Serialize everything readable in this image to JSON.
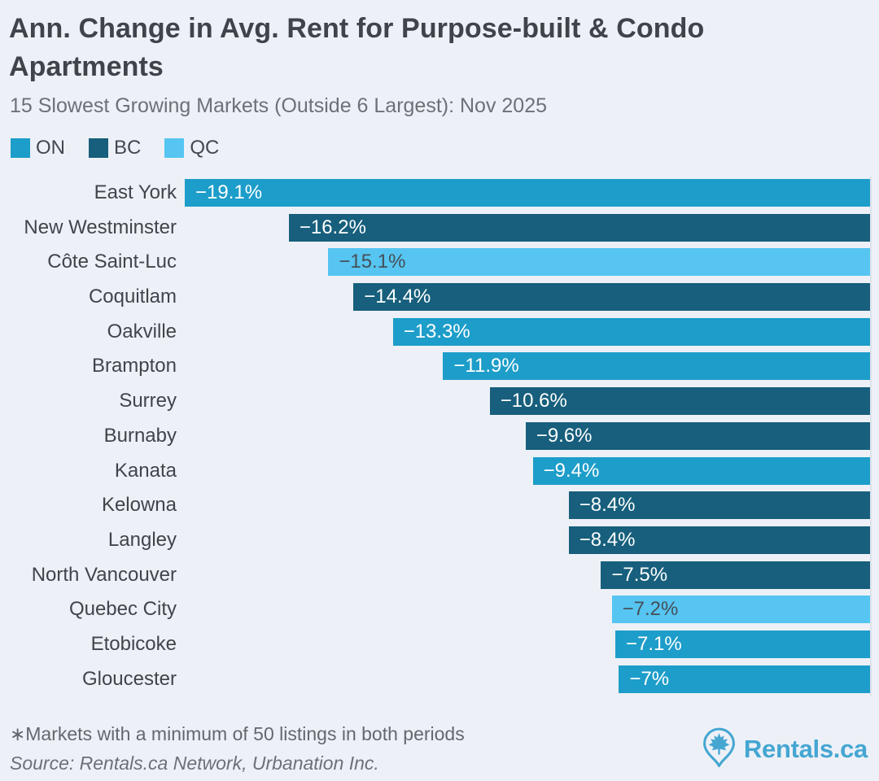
{
  "header": {
    "title": "Ann. Change in Avg. Rent for Purpose-built & Condo Apartments",
    "subtitle": "15 Slowest Growing Markets (Outside 6 Largest): Nov 2025"
  },
  "legend": {
    "items": [
      {
        "label": "ON",
        "color": "#1d9dc9"
      },
      {
        "label": "BC",
        "color": "#175f7c"
      },
      {
        "label": "QC",
        "color": "#56c5f1"
      }
    ]
  },
  "chart_data": {
    "type": "bar",
    "orientation": "horizontal",
    "bar_anchor": "right",
    "title": "Ann. Change in Avg. Rent for Purpose-built & Condo Apartments",
    "subtitle": "15 Slowest Growing Markets (Outside 6 Largest): Nov 2025",
    "legend_position": "top-left",
    "value_unit": "%",
    "xlim": [
      -19.1,
      0
    ],
    "grid": false,
    "categories": [
      "East York",
      "New Westminster",
      "Côte Saint-Luc",
      "Coquitlam",
      "Oakville",
      "Brampton",
      "Surrey",
      "Burnaby",
      "Kanata",
      "Kelowna",
      "Langley",
      "North Vancouver",
      "Quebec City",
      "Etobicoke",
      "Gloucester"
    ],
    "values": [
      -19.1,
      -16.2,
      -15.1,
      -14.4,
      -13.3,
      -11.9,
      -10.6,
      -9.6,
      -9.4,
      -8.4,
      -8.4,
      -7.5,
      -7.2,
      -7.1,
      -7
    ],
    "value_labels": [
      "−19.1%",
      "−16.2%",
      "−15.1%",
      "−14.4%",
      "−13.3%",
      "−11.9%",
      "−10.6%",
      "−9.6%",
      "−9.4%",
      "−8.4%",
      "−8.4%",
      "−7.5%",
      "−7.2%",
      "−7.1%",
      "−7%"
    ],
    "groups": [
      "ON",
      "BC",
      "QC",
      "BC",
      "ON",
      "ON",
      "BC",
      "BC",
      "ON",
      "BC",
      "BC",
      "BC",
      "QC",
      "ON",
      "ON"
    ]
  },
  "footer": {
    "note": "∗Markets with a minimum of 50 listings in both periods",
    "source": "Source: Rentals.ca Network, Urbanation Inc.",
    "brand": "Rentals.ca"
  },
  "colors": {
    "ON": "#1d9dc9",
    "BC": "#175f7c",
    "QC": "#56c5f1",
    "background": "#edf1f7",
    "bar_label_light": "#ffffff",
    "bar_label_dark": "#454f58",
    "zero_line": "#dde3eb",
    "brand_blue": "#45a6d2"
  }
}
